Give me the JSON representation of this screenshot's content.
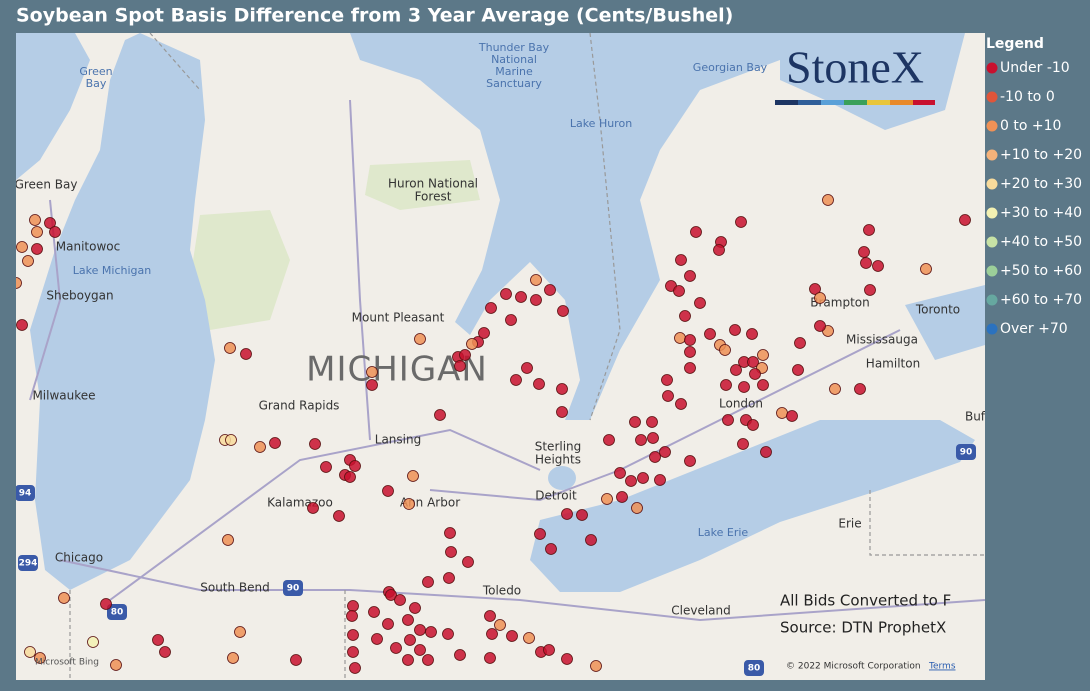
{
  "title": "Soybean Spot Basis Difference from 3 Year Average (Cents/Bushel)",
  "legend": {
    "title": "Legend",
    "items": [
      {
        "label": "Under -10",
        "color": "#c8102e"
      },
      {
        "label": "-10 to 0",
        "color": "#e0553a"
      },
      {
        "label": "0 to +10",
        "color": "#ef9156"
      },
      {
        "label": "+10 to +20",
        "color": "#f5b27a"
      },
      {
        "label": "+20 to +30",
        "color": "#f8db9c"
      },
      {
        "label": "+30 to +40",
        "color": "#f3f1b2"
      },
      {
        "label": "+40 to +50",
        "color": "#c7e2a5"
      },
      {
        "label": "+50 to +60",
        "color": "#9ccf99"
      },
      {
        "label": "+60 to +70",
        "color": "#66a8a0"
      },
      {
        "label": "Over +70",
        "color": "#2b72bf"
      }
    ]
  },
  "logo": "StoneX",
  "map_labels": [
    {
      "lines": [
        "Green",
        "Bay"
      ]
    },
    {
      "lines": [
        "Thunder Bay",
        "National",
        "Marine",
        "Sanctuary"
      ]
    },
    {
      "lines": [
        "Georgian Bay"
      ]
    },
    {
      "lines": [
        "Lake Huron"
      ]
    },
    {
      "lines": [
        "Green Bay"
      ]
    },
    {
      "lines": [
        "Huron National",
        "Forest"
      ]
    },
    {
      "lines": [
        "Manitowoc"
      ]
    },
    {
      "lines": [
        "Lake Michigan"
      ]
    },
    {
      "lines": [
        "Sheboygan"
      ]
    },
    {
      "lines": [
        "Mount Pleasant"
      ]
    },
    {
      "lines": [
        "MICHIGAN"
      ]
    },
    {
      "lines": [
        "Milwaukee"
      ]
    },
    {
      "lines": [
        "Grand Rapids"
      ]
    },
    {
      "lines": [
        "Lansing"
      ]
    },
    {
      "lines": [
        "Sterling",
        "Heights"
      ]
    },
    {
      "lines": [
        "Kalamazoo"
      ]
    },
    {
      "lines": [
        "Ann Arbor"
      ]
    },
    {
      "lines": [
        "Detroit"
      ]
    },
    {
      "lines": [
        "Chicago"
      ]
    },
    {
      "lines": [
        "South Bend"
      ]
    },
    {
      "lines": [
        "Toledo"
      ]
    },
    {
      "lines": [
        "Lake Erie"
      ]
    },
    {
      "lines": [
        "Erie"
      ]
    },
    {
      "lines": [
        "Cleveland"
      ]
    },
    {
      "lines": [
        "Brampton"
      ]
    },
    {
      "lines": [
        "Toronto"
      ]
    },
    {
      "lines": [
        "Mississauga"
      ]
    },
    {
      "lines": [
        "Hamilton"
      ]
    },
    {
      "lines": [
        "London"
      ]
    },
    {
      "lines": [
        "Buf"
      ]
    }
  ],
  "highway_shields": [
    "94",
    "294",
    "80",
    "90",
    "90",
    "80"
  ],
  "notes": [
    "All Bids Converted to F",
    "Source: DTN ProphetX"
  ],
  "attribution": {
    "provider": "Microsoft Bing",
    "copyright": "© 2022 Microsoft Corporation",
    "terms": "Terms"
  }
}
